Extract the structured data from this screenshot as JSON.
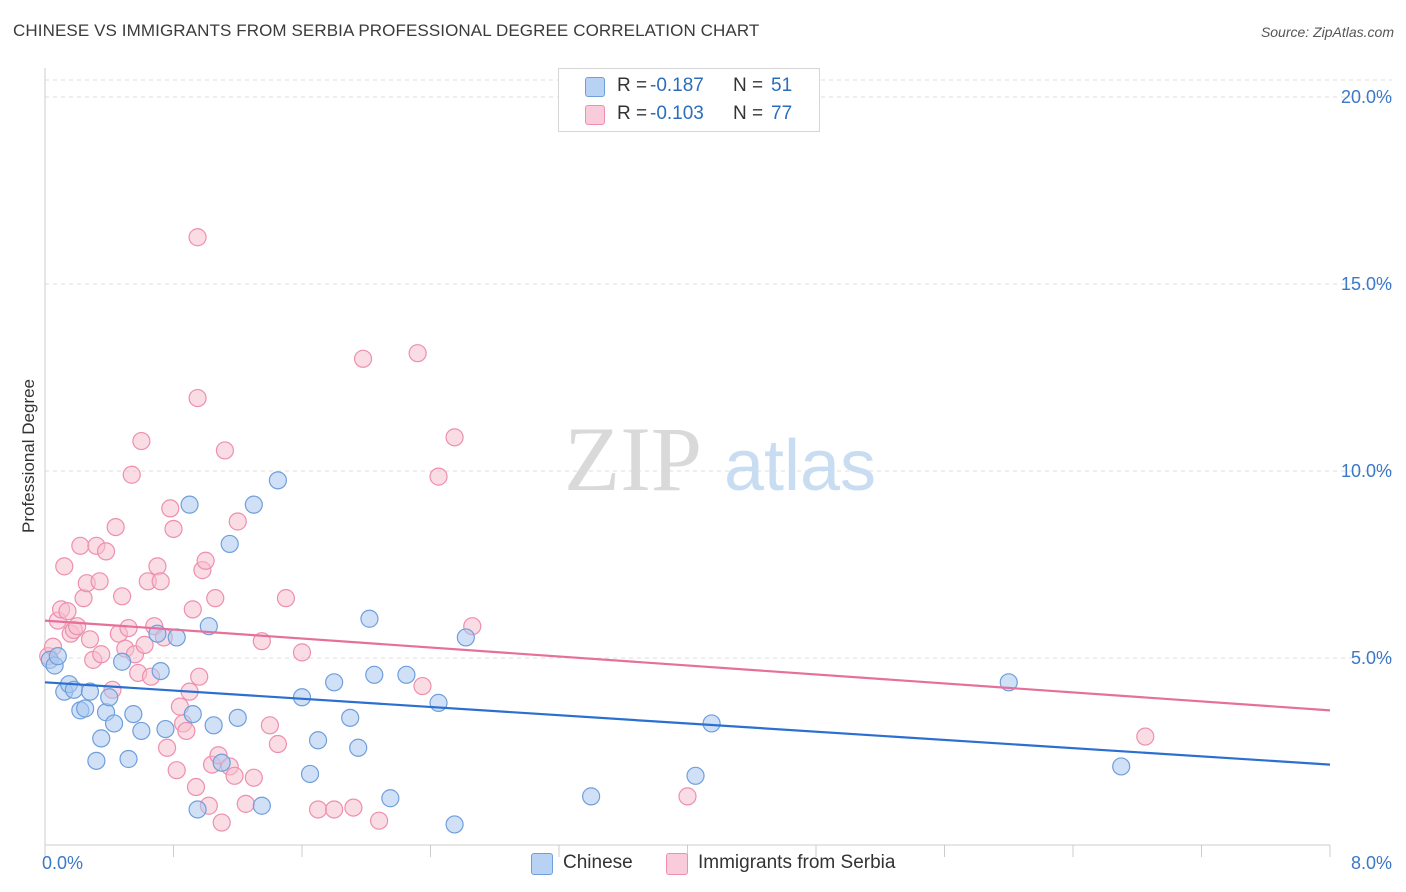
{
  "title": "CHINESE VS IMMIGRANTS FROM SERBIA PROFESSIONAL DEGREE CORRELATION CHART",
  "source": "Source: ZipAtlas.com",
  "watermark": {
    "zip": "ZIP",
    "atlas": "atlas"
  },
  "legend": {
    "rows": [
      {
        "r_label": "R =",
        "r_value": "-0.187",
        "n_label": "N =",
        "n_value": "51"
      },
      {
        "r_label": "R =",
        "r_value": "-0.103",
        "n_label": "N =",
        "n_value": "77"
      }
    ]
  },
  "colors": {
    "chinese_fill": "#a9c8f0",
    "chinese_stroke": "#6f9fdb",
    "chinese_line": "#2b6fd1",
    "serbia_fill": "#f6bfd0",
    "serbia_stroke": "#ee8fae",
    "serbia_line": "#e5709a",
    "tick_label": "#3a78c8"
  },
  "chart_data": {
    "type": "scatter",
    "title": "CHINESE VS IMMIGRANTS FROM SERBIA PROFESSIONAL DEGREE CORRELATION CHART",
    "xlabel": "",
    "ylabel": "Professional Degree",
    "xlim": [
      0,
      8
    ],
    "ylim": [
      0,
      20
    ],
    "x_tick_labels": [
      "0.0%",
      "8.0%"
    ],
    "y_ticks": [
      5,
      10,
      15,
      20
    ],
    "y_tick_labels": [
      "5.0%",
      "10.0%",
      "15.0%",
      "20.0%"
    ],
    "grid": true,
    "legend_position": "bottom",
    "series": [
      {
        "name": "Chinese",
        "r": -0.187,
        "n": 51,
        "trend": {
          "x": [
            0,
            8
          ],
          "y": [
            4.35,
            2.15
          ]
        },
        "points": [
          [
            0.03,
            4.95
          ],
          [
            0.06,
            4.8
          ],
          [
            0.08,
            5.05
          ],
          [
            0.12,
            4.1
          ],
          [
            0.15,
            4.3
          ],
          [
            0.18,
            4.15
          ],
          [
            0.22,
            3.6
          ],
          [
            0.25,
            3.65
          ],
          [
            0.28,
            4.1
          ],
          [
            0.32,
            2.25
          ],
          [
            0.35,
            2.85
          ],
          [
            0.38,
            3.55
          ],
          [
            0.4,
            3.95
          ],
          [
            0.43,
            3.25
          ],
          [
            0.48,
            4.9
          ],
          [
            0.52,
            2.3
          ],
          [
            0.55,
            3.5
          ],
          [
            0.6,
            3.05
          ],
          [
            0.7,
            5.65
          ],
          [
            0.72,
            4.65
          ],
          [
            0.75,
            3.1
          ],
          [
            0.82,
            5.55
          ],
          [
            0.9,
            9.1
          ],
          [
            0.92,
            3.5
          ],
          [
            0.95,
            0.95
          ],
          [
            1.02,
            5.85
          ],
          [
            1.05,
            3.2
          ],
          [
            1.1,
            2.2
          ],
          [
            1.15,
            8.05
          ],
          [
            1.2,
            3.4
          ],
          [
            1.3,
            9.1
          ],
          [
            1.35,
            1.05
          ],
          [
            1.45,
            9.75
          ],
          [
            1.6,
            3.95
          ],
          [
            1.65,
            1.9
          ],
          [
            1.7,
            2.8
          ],
          [
            1.8,
            4.35
          ],
          [
            1.9,
            3.4
          ],
          [
            1.95,
            2.6
          ],
          [
            2.02,
            6.05
          ],
          [
            2.05,
            4.55
          ],
          [
            2.15,
            1.25
          ],
          [
            2.25,
            4.55
          ],
          [
            2.45,
            3.8
          ],
          [
            2.55,
            0.55
          ],
          [
            2.62,
            5.55
          ],
          [
            3.4,
            1.3
          ],
          [
            4.05,
            1.85
          ],
          [
            4.15,
            3.25
          ],
          [
            6.0,
            4.35
          ],
          [
            6.7,
            2.1
          ]
        ]
      },
      {
        "name": "Immigrants from Serbia",
        "r": -0.103,
        "n": 77,
        "trend": {
          "x": [
            0,
            8
          ],
          "y": [
            6.0,
            3.6
          ]
        },
        "points": [
          [
            0.02,
            5.05
          ],
          [
            0.05,
            5.3
          ],
          [
            0.08,
            6.0
          ],
          [
            0.1,
            6.3
          ],
          [
            0.12,
            7.45
          ],
          [
            0.14,
            6.25
          ],
          [
            0.16,
            5.65
          ],
          [
            0.18,
            5.75
          ],
          [
            0.2,
            5.85
          ],
          [
            0.22,
            8.0
          ],
          [
            0.24,
            6.6
          ],
          [
            0.26,
            7.0
          ],
          [
            0.28,
            5.5
          ],
          [
            0.3,
            4.95
          ],
          [
            0.32,
            8.0
          ],
          [
            0.34,
            7.05
          ],
          [
            0.35,
            5.1
          ],
          [
            0.38,
            7.85
          ],
          [
            0.42,
            4.15
          ],
          [
            0.44,
            8.5
          ],
          [
            0.46,
            5.65
          ],
          [
            0.48,
            6.65
          ],
          [
            0.5,
            5.25
          ],
          [
            0.52,
            5.8
          ],
          [
            0.54,
            9.9
          ],
          [
            0.56,
            5.1
          ],
          [
            0.58,
            4.6
          ],
          [
            0.6,
            10.8
          ],
          [
            0.62,
            5.35
          ],
          [
            0.64,
            7.05
          ],
          [
            0.66,
            4.5
          ],
          [
            0.68,
            5.85
          ],
          [
            0.7,
            7.45
          ],
          [
            0.72,
            7.05
          ],
          [
            0.74,
            5.55
          ],
          [
            0.76,
            2.6
          ],
          [
            0.78,
            9.0
          ],
          [
            0.8,
            8.45
          ],
          [
            0.82,
            2.0
          ],
          [
            0.84,
            3.7
          ],
          [
            0.86,
            3.25
          ],
          [
            0.88,
            3.05
          ],
          [
            0.9,
            4.1
          ],
          [
            0.92,
            6.3
          ],
          [
            0.94,
            1.55
          ],
          [
            0.96,
            4.5
          ],
          [
            0.98,
            7.35
          ],
          [
            1.0,
            7.6
          ],
          [
            1.02,
            1.05
          ],
          [
            1.04,
            2.15
          ],
          [
            1.06,
            6.6
          ],
          [
            1.08,
            2.4
          ],
          [
            1.1,
            0.6
          ],
          [
            1.12,
            10.55
          ],
          [
            1.15,
            2.1
          ],
          [
            1.18,
            1.85
          ],
          [
            1.2,
            8.65
          ],
          [
            1.25,
            1.1
          ],
          [
            1.3,
            1.8
          ],
          [
            1.35,
            5.45
          ],
          [
            1.4,
            3.2
          ],
          [
            1.45,
            2.7
          ],
          [
            1.5,
            6.6
          ],
          [
            1.6,
            5.15
          ],
          [
            1.7,
            0.95
          ],
          [
            1.8,
            0.95
          ],
          [
            1.92,
            1.0
          ],
          [
            1.98,
            13.0
          ],
          [
            2.08,
            0.65
          ],
          [
            2.32,
            13.15
          ],
          [
            2.35,
            4.25
          ],
          [
            2.45,
            9.85
          ],
          [
            2.55,
            10.9
          ],
          [
            2.66,
            5.85
          ],
          [
            4.0,
            1.3
          ],
          [
            6.85,
            2.9
          ],
          [
            0.95,
            16.25
          ],
          [
            0.95,
            11.95
          ]
        ]
      }
    ]
  }
}
